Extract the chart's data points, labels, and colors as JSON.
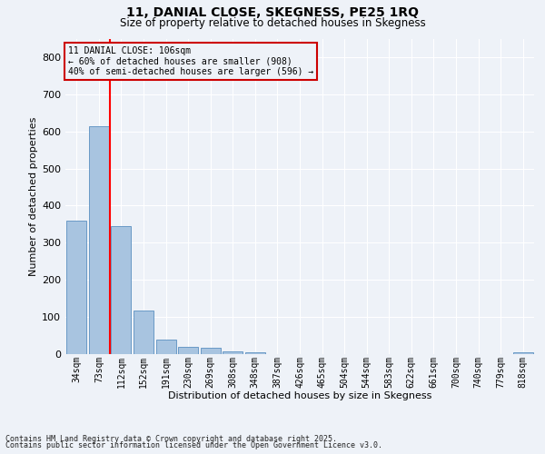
{
  "title1": "11, DANIAL CLOSE, SKEGNESS, PE25 1RQ",
  "title2": "Size of property relative to detached houses in Skegness",
  "xlabel": "Distribution of detached houses by size in Skegness",
  "ylabel": "Number of detached properties",
  "bar_labels": [
    "34sqm",
    "73sqm",
    "112sqm",
    "152sqm",
    "191sqm",
    "230sqm",
    "269sqm",
    "308sqm",
    "348sqm",
    "387sqm",
    "426sqm",
    "465sqm",
    "504sqm",
    "544sqm",
    "583sqm",
    "622sqm",
    "661sqm",
    "700sqm",
    "740sqm",
    "779sqm",
    "818sqm"
  ],
  "bar_values": [
    360,
    615,
    345,
    117,
    40,
    20,
    16,
    8,
    5,
    0,
    0,
    0,
    0,
    0,
    0,
    0,
    0,
    0,
    0,
    0,
    6
  ],
  "bar_color": "#a8c4e0",
  "bar_edge_color": "#5a8fc0",
  "annotation_title": "11 DANIAL CLOSE: 106sqm",
  "annotation_line1": "← 60% of detached houses are smaller (908)",
  "annotation_line2": "40% of semi-detached houses are larger (596) →",
  "annotation_box_color": "#cc0000",
  "ylim": [
    0,
    850
  ],
  "yticks": [
    0,
    100,
    200,
    300,
    400,
    500,
    600,
    700,
    800
  ],
  "footnote1": "Contains HM Land Registry data © Crown copyright and database right 2025.",
  "footnote2": "Contains public sector information licensed under the Open Government Licence v3.0.",
  "background_color": "#eef2f8",
  "grid_color": "#ffffff"
}
